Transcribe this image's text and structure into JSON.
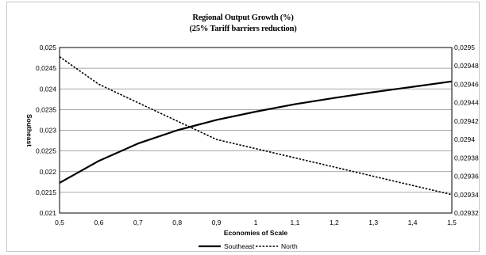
{
  "chart_data": {
    "type": "line",
    "title": "Regional Output Growth (%)",
    "subtitle": "(25% Tariff barriers reduction)",
    "xlabel": "Economies of Scale",
    "ylabel": "Southeast",
    "x": [
      0.5,
      0.6,
      0.7,
      0.8,
      0.9,
      1.0,
      1.1,
      1.2,
      1.3,
      1.4,
      1.5
    ],
    "x_tick_labels": [
      "0,5",
      "0,6",
      "0,7",
      "0,8",
      "0,9",
      "1",
      "1,1",
      "1,2",
      "1,3",
      "1,4",
      "1,5"
    ],
    "xlim": [
      0.5,
      1.5
    ],
    "y_left_lim": [
      0.021,
      0.025
    ],
    "y_left_tick_labels": [
      "0,021",
      "0,0215",
      "0,022",
      "0,0225",
      "0,023",
      "0,0235",
      "0,024",
      "0,0245",
      "0,025"
    ],
    "y_right_lim": [
      0.02932,
      0.0295
    ],
    "y_right_tick_labels": [
      "0,02932",
      "0,02934",
      "0,02936",
      "0,02938",
      "0,0294",
      "0,02942",
      "0,02944",
      "0,02946",
      "0,02948",
      "0,0295"
    ],
    "grid": true,
    "legend_position": "bottom",
    "series": [
      {
        "name": "Southeast",
        "axis": "left",
        "style": "solid",
        "color": "#000000",
        "values": [
          0.02173,
          0.02226,
          0.02268,
          0.023,
          0.02325,
          0.02345,
          0.02363,
          0.02378,
          0.02392,
          0.02405,
          0.02418
        ]
      },
      {
        "name": "North",
        "axis": "right",
        "style": "dashed",
        "color": "#000000",
        "values": [
          0.02949,
          0.02946,
          0.02944,
          0.02942,
          0.0294,
          0.02939,
          0.02938,
          0.02937,
          0.02936,
          0.02935,
          0.02934
        ]
      }
    ]
  }
}
